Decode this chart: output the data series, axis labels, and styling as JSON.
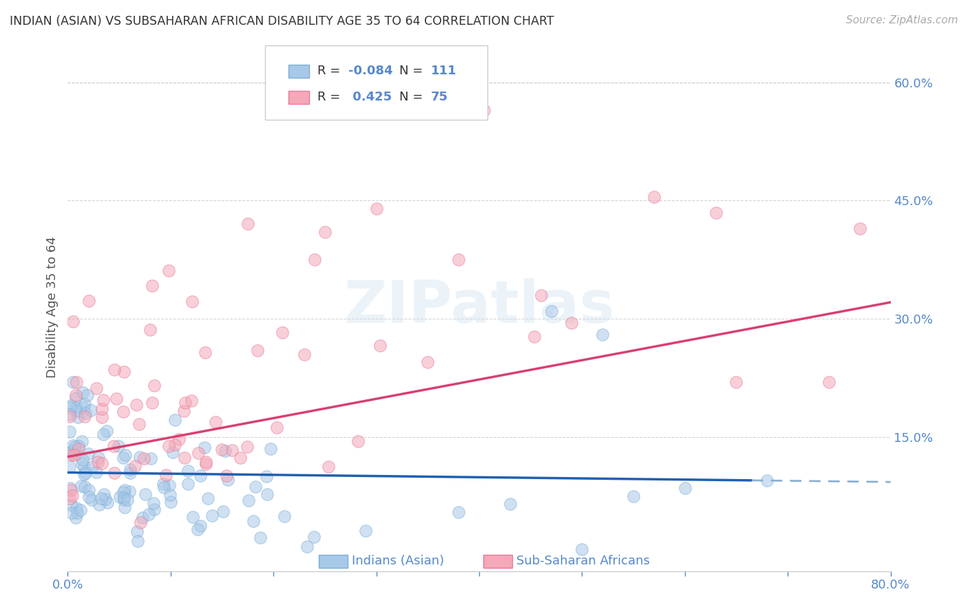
{
  "title": "INDIAN (ASIAN) VS SUBSAHARAN AFRICAN DISABILITY AGE 35 TO 64 CORRELATION CHART",
  "source": "Source: ZipAtlas.com",
  "ylabel": "Disability Age 35 to 64",
  "xlim": [
    0.0,
    0.8
  ],
  "ylim": [
    -0.02,
    0.65
  ],
  "yticks_right": [
    0.15,
    0.3,
    0.45,
    0.6
  ],
  "ytick_labels_right": [
    "15.0%",
    "30.0%",
    "45.0%",
    "60.0%"
  ],
  "blue_R": -0.084,
  "blue_N": 111,
  "pink_R": 0.425,
  "pink_N": 75,
  "blue_color": "#a8c8e8",
  "pink_color": "#f4a8b8",
  "blue_edge_color": "#7aafd4",
  "pink_edge_color": "#e87898",
  "blue_line_color": "#2060b0",
  "pink_line_color": "#d84070",
  "blue_line_dashed_color": "#8ab0d0",
  "watermark": "ZIPatlas",
  "legend_label_blue": "Indians (Asian)",
  "legend_label_pink": "Sub-Saharan Africans",
  "background_color": "#ffffff",
  "title_color": "#333333",
  "axis_label_color": "#555555",
  "tick_color": "#5588cc",
  "grid_color": "#cccccc",
  "legend_text_color_dark": "#333333",
  "legend_text_color_blue": "#5588cc"
}
